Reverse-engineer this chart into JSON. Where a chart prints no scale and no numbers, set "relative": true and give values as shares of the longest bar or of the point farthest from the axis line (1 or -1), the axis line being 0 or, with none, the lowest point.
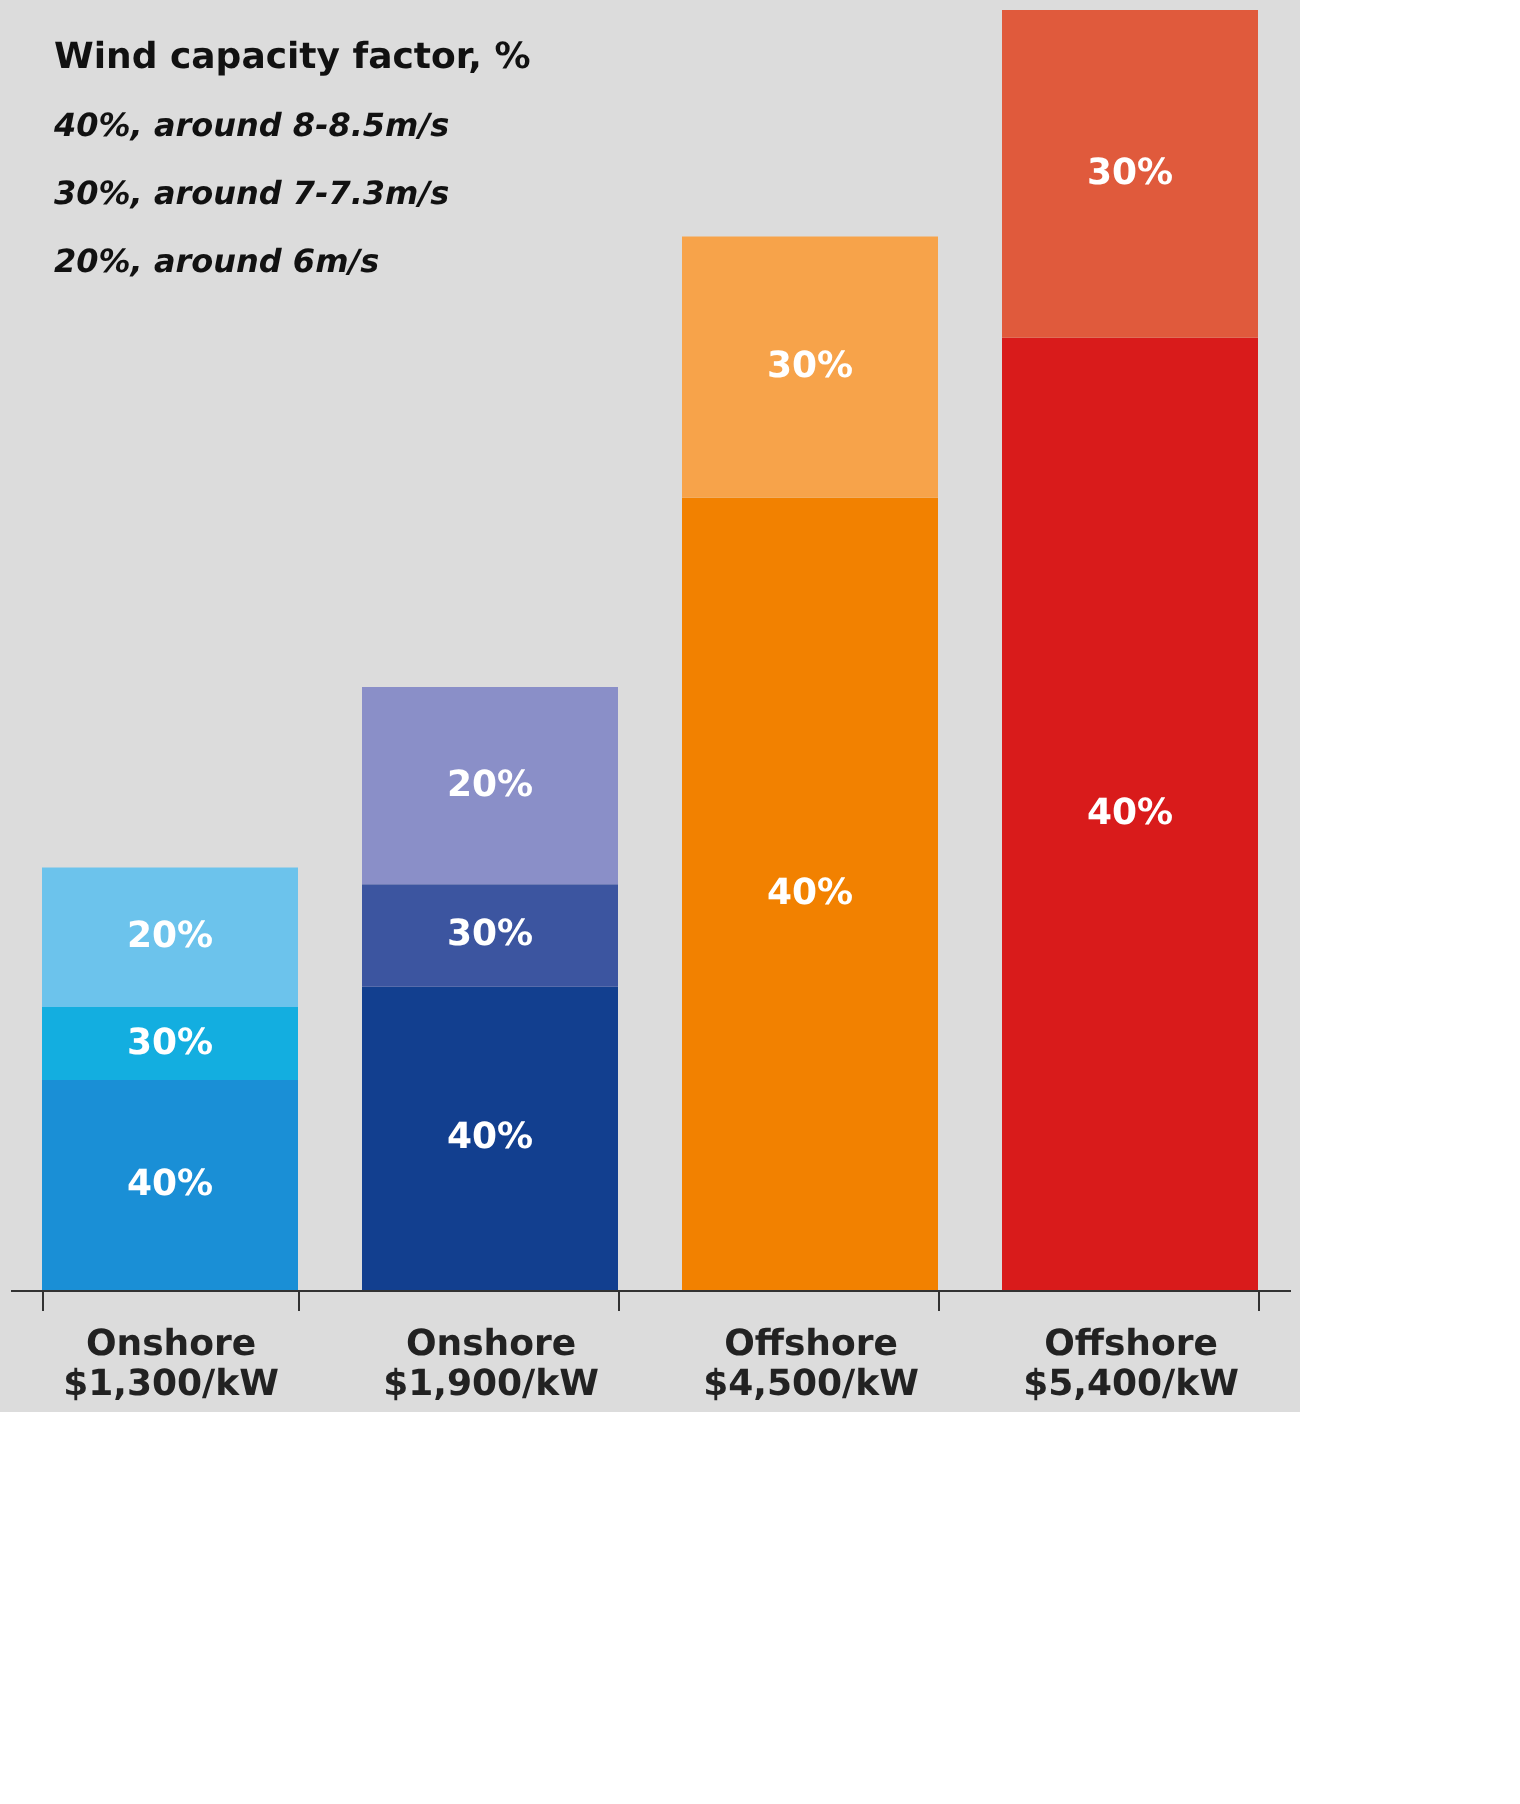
{
  "chart_data": {
    "type": "bar",
    "stacked": true,
    "relative": true,
    "legend_title": "Wind capacity factor, %",
    "annotations": [
      "40%, around 8-8.5m/s",
      "30%, around 7-7.3m/s",
      "20%, around 6m/s"
    ],
    "categories": [
      "Onshore\n$1,300/kW",
      "Onshore\n$1,900/kW",
      "Offshore\n$4,500/kW",
      "Offshore\n$5,400/kW"
    ],
    "series": [
      {
        "name": "40%",
        "colors": [
          "#1a8fd6",
          "#123f8f",
          "#f28100",
          "#d91b1b"
        ],
        "values": [
          0.164,
          0.237,
          0.619,
          0.744
        ]
      },
      {
        "name": "30%",
        "colors": [
          "#13aee0",
          "#3c55a0",
          "#f7a34a",
          "#e05a3c"
        ],
        "values": [
          0.057,
          0.08,
          0.204,
          0.256
        ]
      },
      {
        "name": "20%",
        "colors": [
          "#6cc3ec",
          "#8a8fc8",
          null,
          null
        ],
        "values": [
          0.109,
          0.154,
          null,
          null
        ]
      }
    ]
  }
}
